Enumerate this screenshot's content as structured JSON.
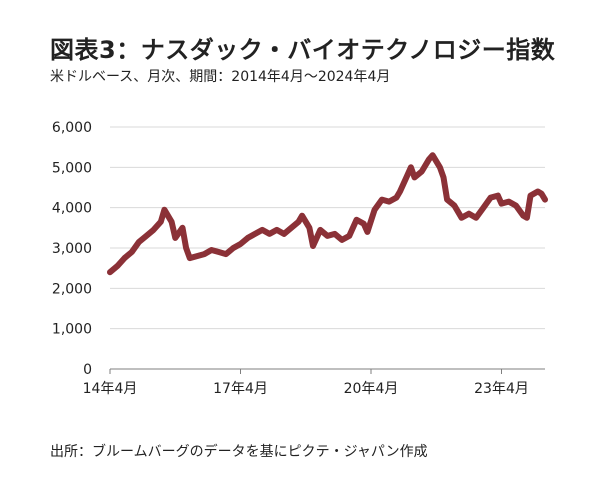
{
  "header": {
    "title": "図表3：ナスダック・バイオテクノロジー指数",
    "subtitle": "米ドルベース、月次、期間：2014年4月～2024年4月"
  },
  "footer": {
    "source": "出所：ブルームバーグのデータを基にピクテ・ジャパン作成"
  },
  "colors": {
    "series": "#8b3137",
    "grid": "#d9d9d9",
    "axis": "#7f7f7f"
  },
  "chart_data": {
    "type": "line",
    "title": "図表3：ナスダック・バイオテクノロジー指数",
    "subtitle": "米ドルベース、月次、期間：2014年4月～2024年4月",
    "ylim": [
      0,
      6000
    ],
    "yticks": [
      0,
      1000,
      2000,
      3000,
      4000,
      5000,
      6000
    ],
    "ytick_labels": [
      "0",
      "1,000",
      "2,000",
      "3,000",
      "4,000",
      "5,000",
      "6,000"
    ],
    "xlim": [
      "2014-04",
      "2024-04"
    ],
    "xticks": [
      "2014-04",
      "2017-04",
      "2020-04",
      "2023-04"
    ],
    "xtick_labels": [
      "14年4月",
      "17年4月",
      "20年4月",
      "23年4月"
    ],
    "grid": true,
    "series": [
      {
        "values": [
          [
            "2014-04",
            2400
          ],
          [
            "2014-06",
            2550
          ],
          [
            "2014-08",
            2750
          ],
          [
            "2014-10",
            2900
          ],
          [
            "2014-12",
            3150
          ],
          [
            "2015-02",
            3300
          ],
          [
            "2015-04",
            3450
          ],
          [
            "2015-06",
            3650
          ],
          [
            "2015-07",
            3950
          ],
          [
            "2015-09",
            3650
          ],
          [
            "2015-10",
            3250
          ],
          [
            "2015-12",
            3500
          ],
          [
            "2016-01",
            3000
          ],
          [
            "2016-02",
            2750
          ],
          [
            "2016-04",
            2800
          ],
          [
            "2016-06",
            2850
          ],
          [
            "2016-08",
            2950
          ],
          [
            "2016-10",
            2900
          ],
          [
            "2016-12",
            2850
          ],
          [
            "2017-02",
            3000
          ],
          [
            "2017-04",
            3100
          ],
          [
            "2017-06",
            3250
          ],
          [
            "2017-08",
            3350
          ],
          [
            "2017-10",
            3450
          ],
          [
            "2017-12",
            3350
          ],
          [
            "2018-02",
            3450
          ],
          [
            "2018-04",
            3350
          ],
          [
            "2018-06",
            3500
          ],
          [
            "2018-08",
            3650
          ],
          [
            "2018-09",
            3800
          ],
          [
            "2018-11",
            3500
          ],
          [
            "2018-12",
            3050
          ],
          [
            "2019-02",
            3450
          ],
          [
            "2019-04",
            3300
          ],
          [
            "2019-06",
            3350
          ],
          [
            "2019-08",
            3200
          ],
          [
            "2019-10",
            3300
          ],
          [
            "2019-12",
            3700
          ],
          [
            "2020-02",
            3600
          ],
          [
            "2020-03",
            3400
          ],
          [
            "2020-05",
            3950
          ],
          [
            "2020-07",
            4200
          ],
          [
            "2020-09",
            4150
          ],
          [
            "2020-11",
            4250
          ],
          [
            "2020-12",
            4400
          ],
          [
            "2021-02",
            4800
          ],
          [
            "2021-03",
            5000
          ],
          [
            "2021-04",
            4750
          ],
          [
            "2021-06",
            4900
          ],
          [
            "2021-08",
            5200
          ],
          [
            "2021-09",
            5300
          ],
          [
            "2021-11",
            5000
          ],
          [
            "2021-12",
            4750
          ],
          [
            "2022-01",
            4200
          ],
          [
            "2022-03",
            4050
          ],
          [
            "2022-05",
            3750
          ],
          [
            "2022-07",
            3850
          ],
          [
            "2022-09",
            3750
          ],
          [
            "2022-11",
            4000
          ],
          [
            "2023-01",
            4250
          ],
          [
            "2023-03",
            4300
          ],
          [
            "2023-04",
            4100
          ],
          [
            "2023-06",
            4150
          ],
          [
            "2023-08",
            4050
          ],
          [
            "2023-10",
            3800
          ],
          [
            "2023-11",
            3750
          ],
          [
            "2023-12",
            4300
          ],
          [
            "2024-02",
            4400
          ],
          [
            "2024-03",
            4350
          ],
          [
            "2024-04",
            4200
          ]
        ]
      }
    ]
  }
}
